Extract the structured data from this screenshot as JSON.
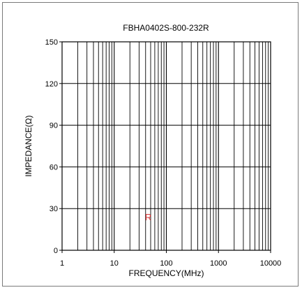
{
  "chart_data": {
    "type": "line",
    "title": "FBHA0402S-800-232R",
    "xlabel": "FREQUENCY(MHz)",
    "ylabel": "IMPEDANCE(Ω)",
    "xscale": "log",
    "xlim": [
      1,
      10000
    ],
    "ylim": [
      0,
      150
    ],
    "xticks": [
      1,
      10,
      100,
      1000,
      10000
    ],
    "xtick_labels": [
      "1",
      "10",
      "100",
      "1000",
      "10000"
    ],
    "yticks": [
      0,
      30,
      60,
      90,
      120,
      150
    ],
    "ytick_labels": [
      "0",
      "30",
      "60",
      "90",
      "120",
      "150"
    ],
    "grid": true,
    "series": [
      {
        "name": "R",
        "color": "#d63a3a",
        "values": []
      }
    ],
    "annotations": [
      {
        "text": "R",
        "x": 45,
        "y": 24,
        "color": "#d63a3a"
      }
    ]
  }
}
